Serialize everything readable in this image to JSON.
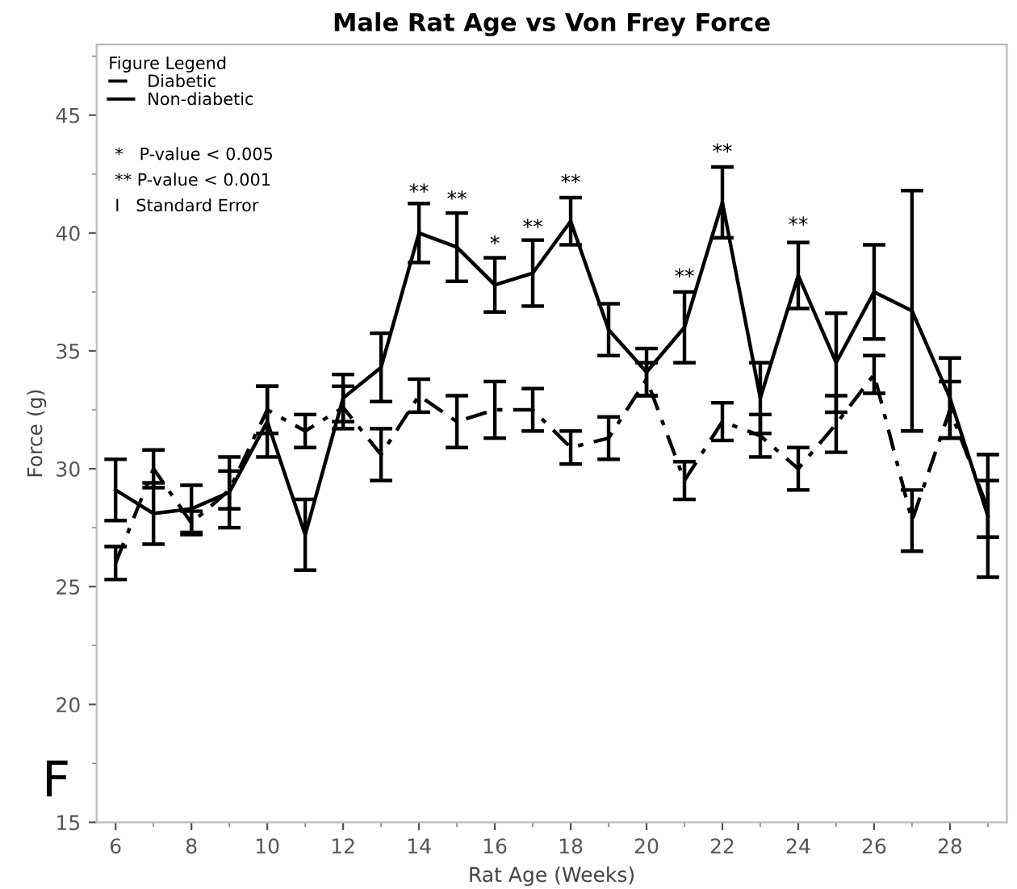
{
  "chart_data": {
    "type": "line",
    "title": "Male Rat Age vs Von Frey Force",
    "xlabel": "Rat Age (Weeks)",
    "ylabel": "Force (g)",
    "x": [
      6,
      7,
      8,
      9,
      10,
      11,
      12,
      13,
      14,
      15,
      16,
      17,
      18,
      19,
      20,
      21,
      22,
      23,
      24,
      25,
      26,
      27,
      28,
      29
    ],
    "series": [
      {
        "name": "Diabetic",
        "color": "#000000",
        "line_style": "dashed",
        "values": [
          26.0,
          30.0,
          27.7,
          29.1,
          32.5,
          31.6,
          32.6,
          30.6,
          33.1,
          32.0,
          32.5,
          32.5,
          30.9,
          31.3,
          33.8,
          29.5,
          32.0,
          31.4,
          30.0,
          31.9,
          34.0,
          27.8,
          32.5,
          28.3
        ],
        "errors": [
          0.7,
          0.8,
          0.5,
          0.8,
          1.0,
          0.7,
          0.9,
          1.1,
          0.7,
          1.1,
          1.2,
          0.9,
          0.7,
          0.9,
          0.7,
          0.8,
          0.8,
          0.9,
          0.9,
          1.2,
          0.8,
          1.3,
          1.2,
          1.2
        ]
      },
      {
        "name": "Non-diabetic",
        "color": "#000000",
        "line_style": "solid",
        "values": [
          29.1,
          28.1,
          28.3,
          29.0,
          32.0,
          27.2,
          33.0,
          34.3,
          40.0,
          39.4,
          37.8,
          38.3,
          40.5,
          35.9,
          34.1,
          36.0,
          41.3,
          33.0,
          38.2,
          34.5,
          37.5,
          36.7,
          33.0,
          28.0
        ],
        "errors": [
          1.3,
          1.3,
          1.0,
          1.5,
          1.5,
          1.5,
          1.0,
          1.45,
          1.25,
          1.45,
          1.15,
          1.4,
          1.0,
          1.1,
          1.0,
          1.5,
          1.5,
          1.5,
          1.4,
          2.1,
          2.0,
          5.1,
          1.7,
          2.6
        ]
      }
    ],
    "xlim": [
      5.5,
      29.5
    ],
    "ylim": [
      15,
      48
    ],
    "xticks": [
      6,
      8,
      10,
      12,
      14,
      16,
      18,
      20,
      22,
      24,
      26,
      28
    ],
    "yticks": [
      15,
      20,
      25,
      30,
      35,
      40,
      45
    ],
    "marker": "none",
    "grid": false,
    "legend": "top left",
    "legend_title": "Figure Legend",
    "annotations": [
      {
        "text": "**",
        "x": 14,
        "y": 41.1
      },
      {
        "text": "**",
        "x": 15,
        "y": 40.8
      },
      {
        "text": "*",
        "x": 16,
        "y": 38.9
      },
      {
        "text": "**",
        "x": 17,
        "y": 39.6
      },
      {
        "text": "**",
        "x": 18,
        "y": 41.5
      },
      {
        "text": "**",
        "x": 21,
        "y": 37.5
      },
      {
        "text": "**",
        "x": 22,
        "y": 42.8
      },
      {
        "text": "**",
        "x": 24,
        "y": 39.7
      },
      "*   P-value < 0.005",
      "** P-value < 0.001",
      "I   Standard Error",
      "F"
    ]
  }
}
